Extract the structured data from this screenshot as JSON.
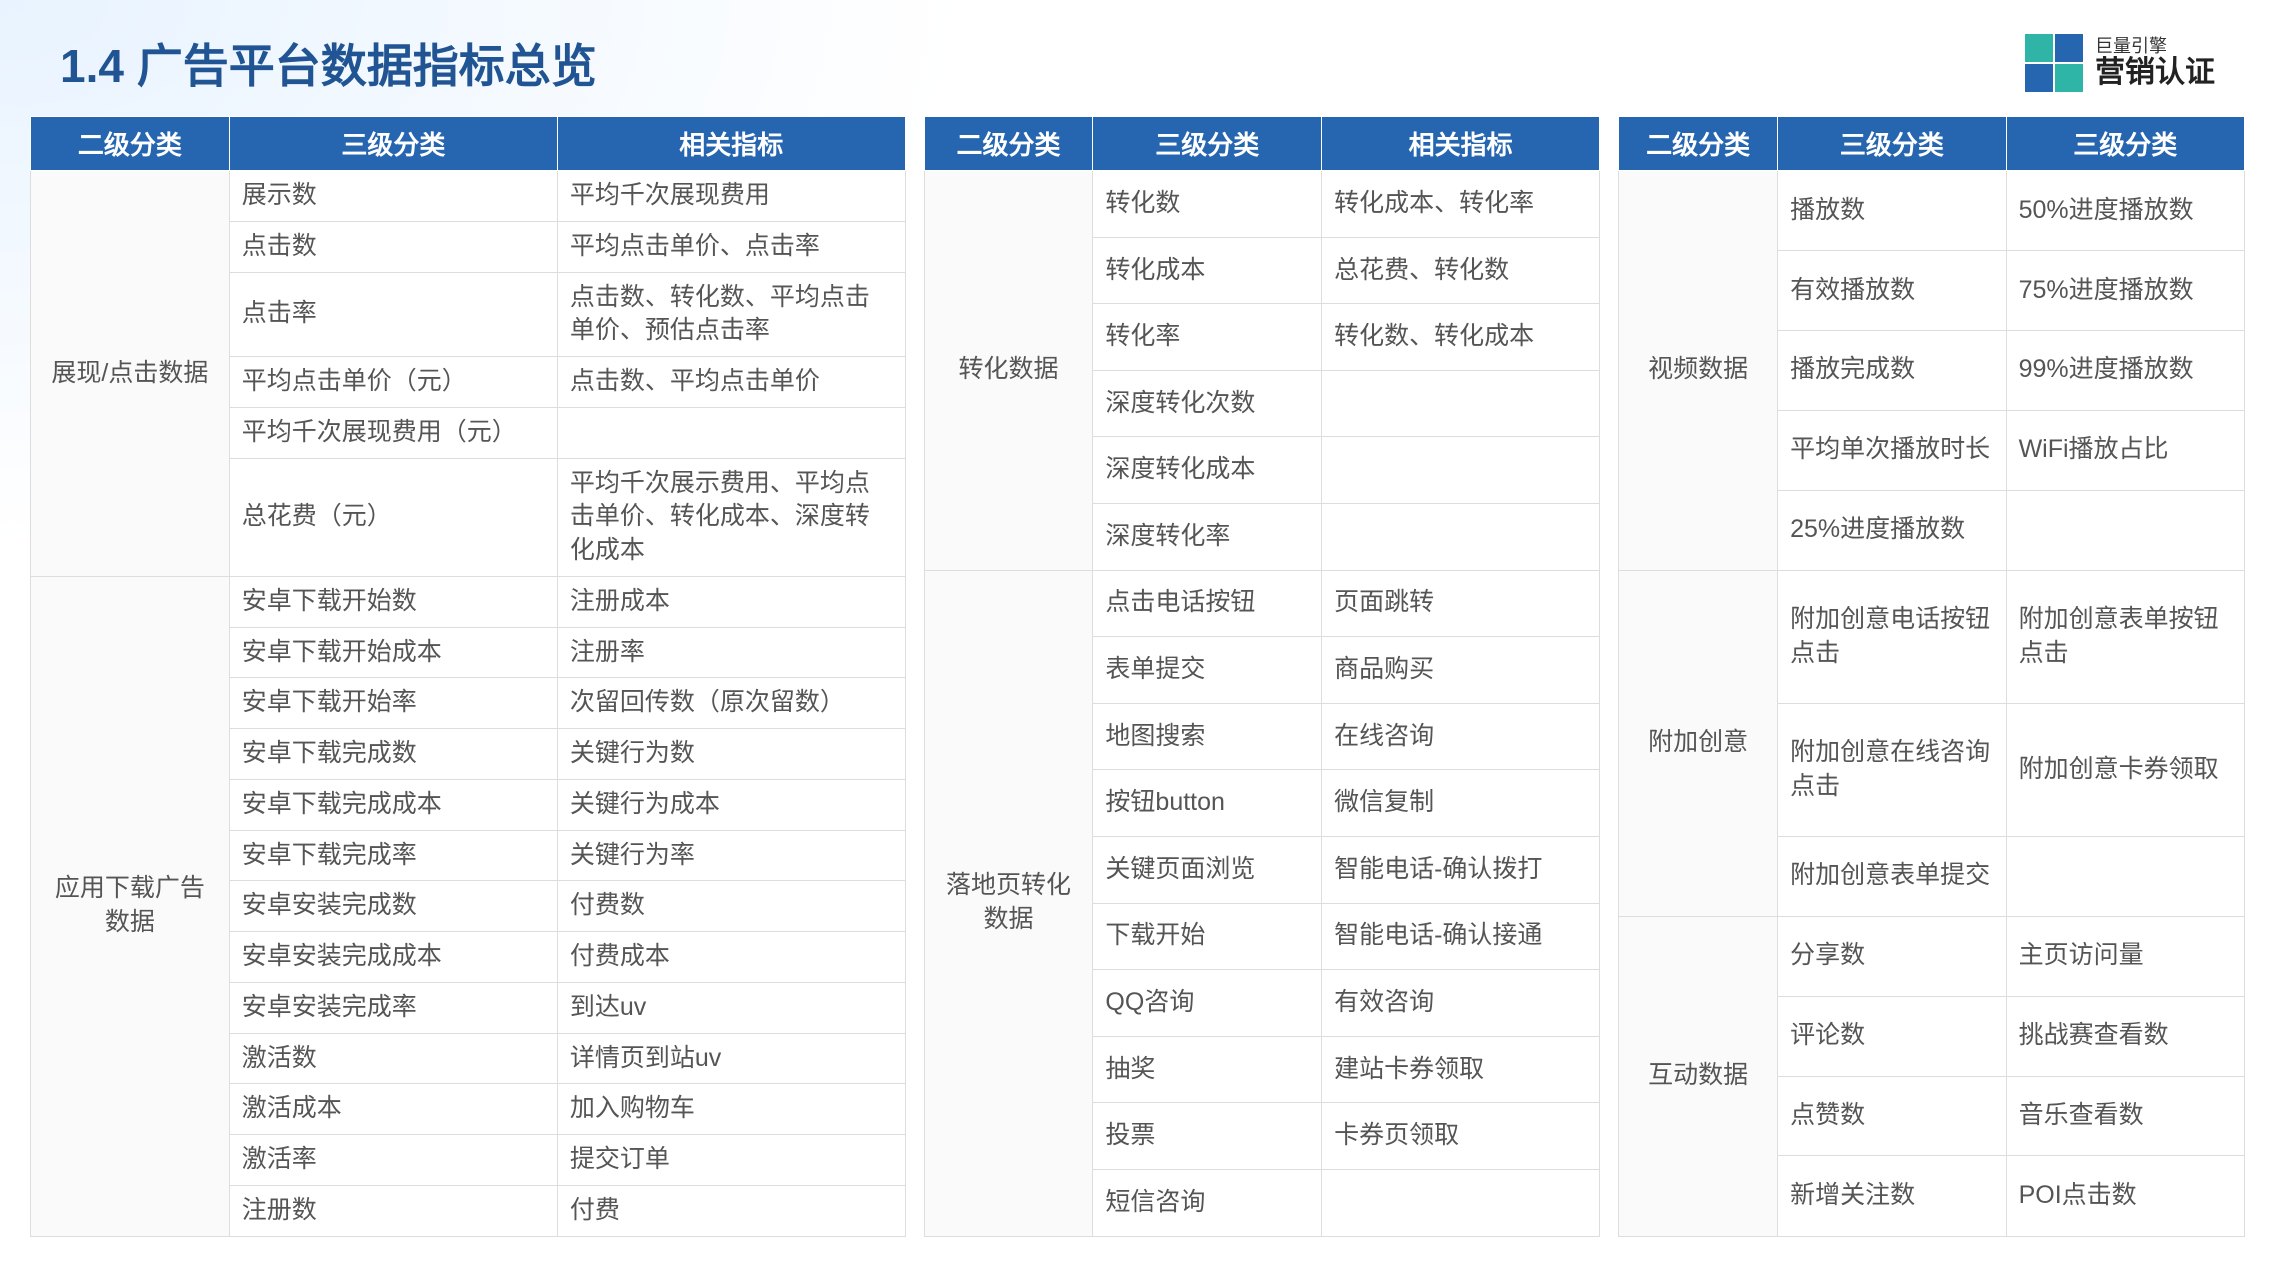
{
  "page": {
    "title": "1.4 广告平台数据指标总览",
    "logo_sub": "巨量引擎",
    "logo_main": "营销认证"
  },
  "colors": {
    "header_bg": "#2666b0",
    "header_text": "#ffffff",
    "title_color": "#205493",
    "cell_text": "#555555",
    "border": "#dddddd"
  },
  "headers": {
    "l2": "二级分类",
    "l3": "三级分类",
    "metric": "相关指标"
  },
  "table1": {
    "groups": [
      {
        "category": "展现/点击数据",
        "rows": [
          {
            "c2": "展示数",
            "c3": "平均千次展现费用"
          },
          {
            "c2": "点击数",
            "c3": "平均点击单价、点击率"
          },
          {
            "c2": "点击率",
            "c3": "点击数、转化数、平均点击单价、预估点击率"
          },
          {
            "c2": "平均点击单价（元）",
            "c3": "点击数、平均点击单价"
          },
          {
            "c2": "平均千次展现费用（元）",
            "c3": ""
          },
          {
            "c2": "总花费（元）",
            "c3": "平均千次展示费用、平均点击单价、转化成本、深度转化成本"
          }
        ]
      },
      {
        "category": "应用下载广告数据",
        "rows": [
          {
            "c2": "安卓下载开始数",
            "c3": "注册成本"
          },
          {
            "c2": "安卓下载开始成本",
            "c3": "注册率"
          },
          {
            "c2": "安卓下载开始率",
            "c3": "次留回传数（原次留数）"
          },
          {
            "c2": "安卓下载完成数",
            "c3": "关键行为数"
          },
          {
            "c2": "安卓下载完成成本",
            "c3": "关键行为成本"
          },
          {
            "c2": "安卓下载完成率",
            "c3": "关键行为率"
          },
          {
            "c2": "安卓安装完成数",
            "c3": "付费数"
          },
          {
            "c2": "安卓安装完成成本",
            "c3": "付费成本"
          },
          {
            "c2": "安卓安装完成率",
            "c3": "到达uv"
          },
          {
            "c2": "激活数",
            "c3": "详情页到站uv"
          },
          {
            "c2": "激活成本",
            "c3": "加入购物车"
          },
          {
            "c2": "激活率",
            "c3": "提交订单"
          },
          {
            "c2": "注册数",
            "c3": "付费"
          }
        ]
      }
    ]
  },
  "table2": {
    "groups": [
      {
        "category": "转化数据",
        "rows": [
          {
            "c2": "转化数",
            "c3": "转化成本、转化率"
          },
          {
            "c2": "转化成本",
            "c3": "总花费、转化数"
          },
          {
            "c2": "转化率",
            "c3": "转化数、转化成本"
          },
          {
            "c2": "深度转化次数",
            "c3": ""
          },
          {
            "c2": "深度转化成本",
            "c3": ""
          },
          {
            "c2": "深度转化率",
            "c3": ""
          }
        ]
      },
      {
        "category": "落地页转化数据",
        "rows": [
          {
            "c2": "点击电话按钮",
            "c3": "页面跳转"
          },
          {
            "c2": "表单提交",
            "c3": "商品购买"
          },
          {
            "c2": "地图搜索",
            "c3": "在线咨询"
          },
          {
            "c2": "按钮button",
            "c3": "微信复制"
          },
          {
            "c2": "关键页面浏览",
            "c3": "智能电话-确认拨打"
          },
          {
            "c2": "下载开始",
            "c3": "智能电话-确认接通"
          },
          {
            "c2": "QQ咨询",
            "c3": "有效咨询"
          },
          {
            "c2": "抽奖",
            "c3": "建站卡券领取"
          },
          {
            "c2": "投票",
            "c3": "卡券页领取"
          },
          {
            "c2": "短信咨询",
            "c3": ""
          }
        ]
      }
    ]
  },
  "table3": {
    "groups": [
      {
        "category": "视频数据",
        "rows": [
          {
            "c2": "播放数",
            "c3": "50%进度播放数"
          },
          {
            "c2": "有效播放数",
            "c3": "75%进度播放数"
          },
          {
            "c2": "播放完成数",
            "c3": "99%进度播放数"
          },
          {
            "c2": "平均单次播放时长",
            "c3": "WiFi播放占比"
          },
          {
            "c2": "25%进度播放数",
            "c3": ""
          }
        ]
      },
      {
        "category": "附加创意",
        "rows": [
          {
            "c2": "附加创意电话按钮点击",
            "c3": "附加创意表单按钮点击"
          },
          {
            "c2": "附加创意在线咨询点击",
            "c3": "附加创意卡券领取"
          },
          {
            "c2": "附加创意表单提交",
            "c3": ""
          }
        ]
      },
      {
        "category": "互动数据",
        "rows": [
          {
            "c2": "分享数",
            "c3": "主页访问量"
          },
          {
            "c2": "评论数",
            "c3": "挑战赛查看数"
          },
          {
            "c2": "点赞数",
            "c3": "音乐查看数"
          },
          {
            "c2": "新增关注数",
            "c3": "POI点击数"
          }
        ]
      }
    ]
  }
}
